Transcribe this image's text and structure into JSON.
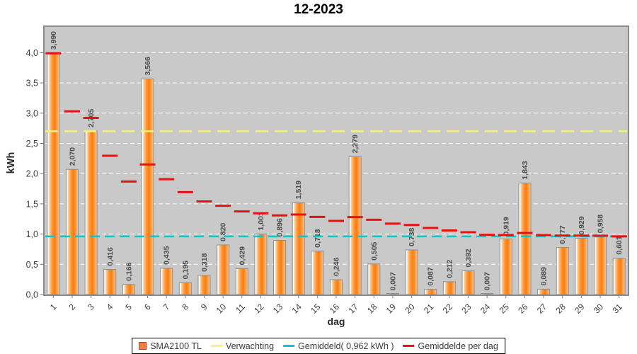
{
  "chart_data": {
    "type": "bar",
    "title": "12-2023",
    "xlabel": "dag",
    "ylabel": "kWh",
    "ylim": [
      0,
      4.45
    ],
    "grid": "horizontal-white-dashed",
    "legend_position": "bottom-center",
    "x": [
      1,
      2,
      3,
      4,
      5,
      6,
      7,
      8,
      9,
      10,
      11,
      12,
      13,
      14,
      15,
      16,
      17,
      18,
      19,
      20,
      21,
      22,
      23,
      24,
      25,
      26,
      27,
      28,
      29,
      30,
      31
    ],
    "y_ticks": [
      "0,0",
      "0,5",
      "1,0",
      "1,5",
      "2,0",
      "2,5",
      "3,0",
      "3,5",
      "4,0"
    ],
    "y_tick_values": [
      0,
      0.5,
      1.0,
      1.5,
      2.0,
      2.5,
      3.0,
      3.5,
      4.0
    ],
    "series": [
      {
        "name": "SMA2100 TL",
        "type": "bar",
        "color": "#F58120",
        "values": [
          3.99,
          2.07,
          2.705,
          0.416,
          0.166,
          3.566,
          0.435,
          0.195,
          0.318,
          0.82,
          0.429,
          1.001,
          0.896,
          1.519,
          0.718,
          0.246,
          2.279,
          0.505,
          0.007,
          0.738,
          0.087,
          0.212,
          0.392,
          0.007,
          0.919,
          1.843,
          0.089,
          0.777,
          0.929,
          0.958,
          0.601
        ],
        "labels": [
          "3,990",
          "2,070",
          "2,705",
          "0,416",
          "0,166",
          "3,566",
          "0,435",
          "0,195",
          "0,318",
          "0,820",
          "0,429",
          "1,001",
          "0,896",
          "1,519",
          "0,718",
          "0,246",
          "2,279",
          "0,505",
          "0,007",
          "0,738",
          "0,087",
          "0,212",
          "0,392",
          "0,007",
          "0,919",
          "1,843",
          "0,089",
          "0,777",
          "0,929",
          "0,958",
          "0,601"
        ]
      },
      {
        "name": "Verwachting",
        "type": "hline",
        "color": "#F6F17E",
        "value": 2.7
      },
      {
        "name": "Gemiddeld( 0,962 kWh )",
        "type": "hline",
        "color": "#12C4C4",
        "value": 0.962
      },
      {
        "name": "Gemiddelde per dag",
        "type": "step-segments",
        "color": "#E51212",
        "values": [
          3.99,
          3.03,
          2.922,
          2.295,
          1.869,
          2.152,
          1.907,
          1.693,
          1.54,
          1.468,
          1.374,
          1.343,
          1.308,
          1.323,
          1.283,
          1.218,
          1.281,
          1.237,
          1.173,
          1.151,
          1.1,
          1.06,
          1.031,
          0.988,
          0.985,
          1.018,
          0.984,
          0.977,
          0.975,
          0.974,
          0.962
        ]
      }
    ]
  },
  "legend": {
    "items": [
      {
        "label": "SMA2100 TL",
        "swatch": "square",
        "color": "#ED7C4B"
      },
      {
        "label": "Verwachting",
        "swatch": "dash",
        "color": "#F6F17E"
      },
      {
        "label": "Gemiddeld( 0,962 kWh )",
        "swatch": "dash",
        "color": "#12C4C4"
      },
      {
        "label": "Gemiddelde per dag",
        "swatch": "dash",
        "color": "#E51212"
      }
    ]
  },
  "colors": {
    "plot_background": "#C9C9C9",
    "plot_border": "#8A8A8A",
    "gridline": "#FFFFFF",
    "bar_border": "#8F8F8F",
    "value_label": "#4B4B4B",
    "tick_label": "#3D3D3D",
    "axis_title": "#2B2B2B"
  }
}
